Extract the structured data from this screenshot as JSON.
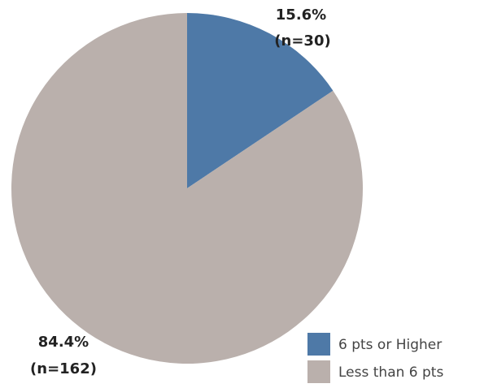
{
  "chart_data": {
    "type": "pie",
    "title": "",
    "legend_position": "bottom-right",
    "start_angle": "12 o'clock, clockwise",
    "slices": [
      {
        "label": "6 pts or Higher",
        "percent": 15.6,
        "count": 30,
        "color": "#4e79a7",
        "pct_text": "15.6%",
        "n_text": "(n=30)"
      },
      {
        "label": "Less than 6 pts",
        "percent": 84.4,
        "count": 162,
        "color": "#bab0ac",
        "pct_text": "84.4%",
        "n_text": "(n=162)"
      }
    ]
  }
}
